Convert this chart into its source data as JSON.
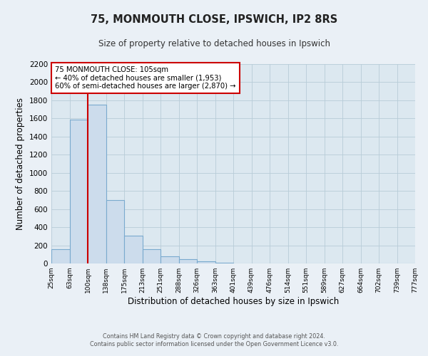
{
  "title_line1": "75, MONMOUTH CLOSE, IPSWICH, IP2 8RS",
  "title_line2": "Size of property relative to detached houses in Ipswich",
  "xlabel": "Distribution of detached houses by size in Ipswich",
  "ylabel": "Number of detached properties",
  "bin_labels": [
    "25sqm",
    "63sqm",
    "100sqm",
    "138sqm",
    "175sqm",
    "213sqm",
    "251sqm",
    "288sqm",
    "326sqm",
    "363sqm",
    "401sqm",
    "439sqm",
    "476sqm",
    "514sqm",
    "551sqm",
    "589sqm",
    "627sqm",
    "664sqm",
    "702sqm",
    "739sqm",
    "777sqm"
  ],
  "bar_values": [
    160,
    1590,
    1750,
    700,
    310,
    155,
    80,
    45,
    20,
    10,
    0,
    0,
    0,
    0,
    0,
    0,
    0,
    0,
    0,
    0
  ],
  "bar_color": "#ccdcec",
  "bar_edge_color": "#7aaace",
  "bar_width": 1.0,
  "property_bin_index": 2,
  "red_line_color": "#cc0000",
  "annotation_title": "75 MONMOUTH CLOSE: 105sqm",
  "annotation_line2": "← 40% of detached houses are smaller (1,953)",
  "annotation_line3": "60% of semi-detached houses are larger (2,870) →",
  "annotation_box_color": "#ffffff",
  "annotation_border_color": "#cc0000",
  "ylim": [
    0,
    2200
  ],
  "yticks": [
    0,
    200,
    400,
    600,
    800,
    1000,
    1200,
    1400,
    1600,
    1800,
    2000,
    2200
  ],
  "grid_color": "#b8ccd8",
  "plot_bg_color": "#dce8f0",
  "fig_bg_color": "#eaf0f6",
  "footer_line1": "Contains HM Land Registry data © Crown copyright and database right 2024.",
  "footer_line2": "Contains public sector information licensed under the Open Government Licence v3.0."
}
